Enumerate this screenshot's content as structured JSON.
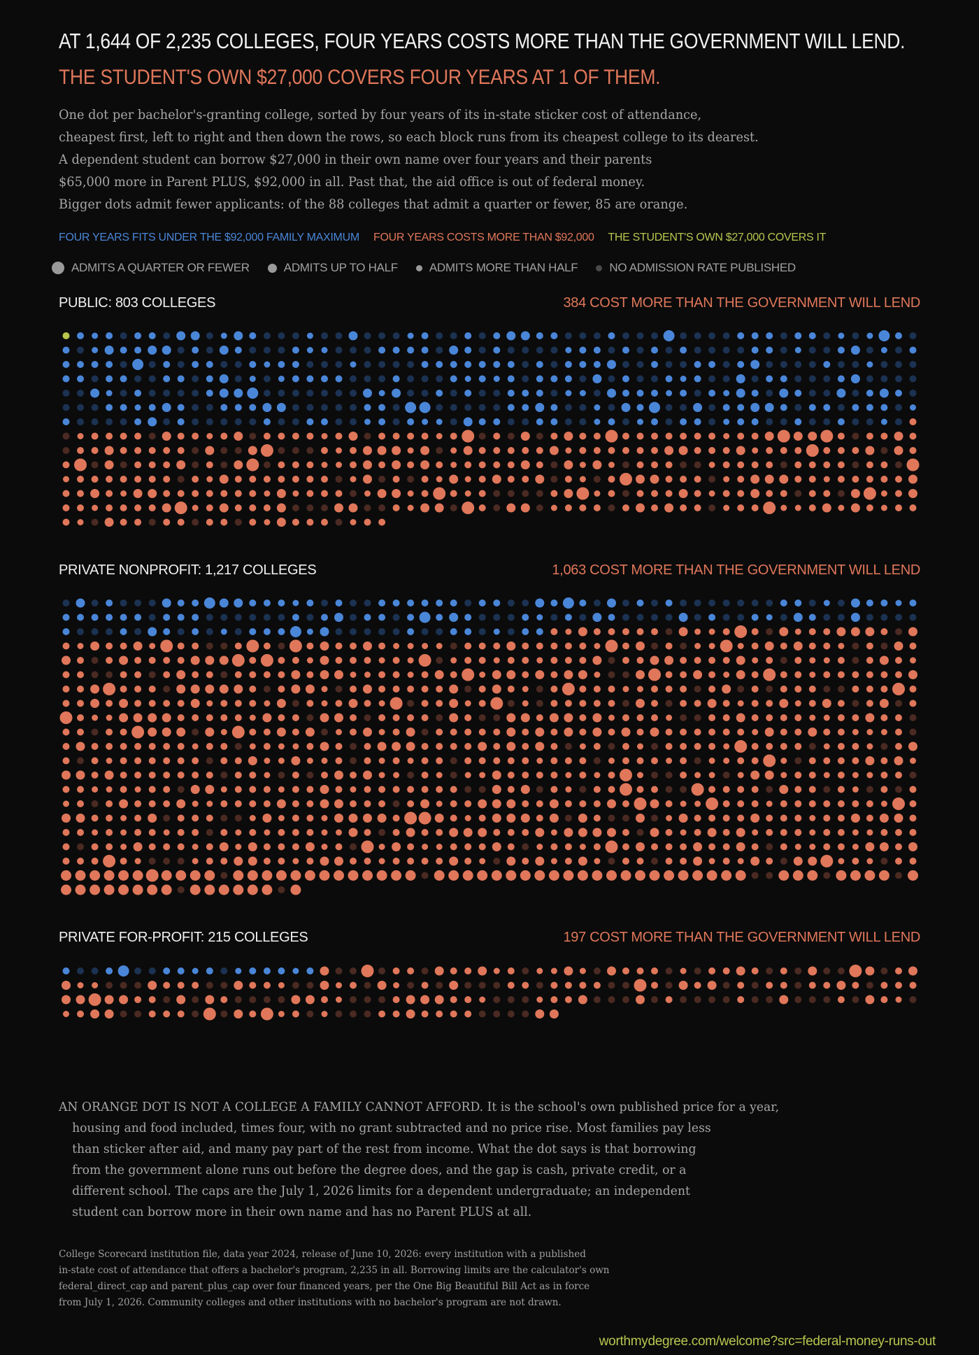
{
  "header": {
    "headline": "AT 1,644 OF 2,235 COLLEGES, FOUR YEARS COSTS MORE THAN THE GOVERNMENT WILL LEND.",
    "subhead": "THE STUDENT'S OWN $27,000 COVERS FOUR YEARS AT 1 OF THEM.",
    "intro": [
      "One dot per bachelor's-granting college, sorted by four years of its in-state sticker cost of attendance,",
      "cheapest first, left to right and then down the rows, so each block runs from its cheapest college to its dearest.",
      "A dependent student can borrow $27,000 in their own name over four years and their parents",
      "$65,000 more in Parent PLUS, $92,000 in all. Past that, the aid office is out of federal money.",
      "Bigger dots admit fewer applicants: of the 88 colleges that admit a quarter or fewer, 85 are orange."
    ]
  },
  "legend": {
    "colors": [
      {
        "label": "FOUR YEARS FITS UNDER THE $92,000 FAMILY MAXIMUM",
        "color": "#4a86d8"
      },
      {
        "label": "FOUR YEARS COSTS MORE THAN $92,000",
        "color": "#e0775a"
      },
      {
        "label": "THE STUDENT'S OWN $27,000 COVERS IT",
        "color": "#b9c64e"
      }
    ],
    "sizes": [
      {
        "label": "ADMITS A QUARTER OR FEWER"
      },
      {
        "label": "ADMITS UP TO HALF"
      },
      {
        "label": "ADMITS MORE THAN HALF"
      },
      {
        "label": "NO ADMISSION RATE PUBLISHED"
      }
    ]
  },
  "colors": {
    "background": "#0b0b0b",
    "fits": "#4a86d8",
    "fits_dim": "#1c3252",
    "over": "#e0775a",
    "over_dim": "#4a2a22",
    "covers": "#b9c64e"
  },
  "chart_data": {
    "type": "dot-grid",
    "sort": "four-year in-state sticker cost of attendance, ascending",
    "columns": 60,
    "family_max": 92000,
    "student_own": 27000,
    "admit_rate_quarter_or_fewer_total": 88,
    "admit_rate_quarter_or_fewer_orange": 85,
    "sections": [
      {
        "title": "PUBLIC: 803 COLLEGES",
        "count_label": "384 COST MORE THAN THE GOVERNMENT WILL LEND",
        "total": 803,
        "over": 384,
        "covers": 1
      },
      {
        "title": "PRIVATE NONPROFIT: 1,217 COLLEGES",
        "count_label": "1,063 COST MORE THAN THE GOVERNMENT WILL LEND",
        "total": 1217,
        "over": 1063,
        "covers": 0
      },
      {
        "title": "PRIVATE FOR-PROFIT: 215 COLLEGES",
        "count_label": "197 COST MORE THAN THE GOVERNMENT WILL LEND",
        "total": 215,
        "over": 197,
        "covers": 0
      }
    ]
  },
  "note": {
    "lead": "AN ORANGE DOT IS NOT A COLLEGE A FAMILY CANNOT AFFORD.",
    "first_rest": " It is the school's own published price for a year,",
    "lines": [
      "housing and food included, times four, with no grant subtracted and no price rise. Most families pay less",
      "than sticker after aid, and many pay part of the rest from income. What the dot says is that borrowing",
      "from the government alone runs out before the degree does, and the gap is cash, private credit, or a",
      "different school. The caps are the July 1, 2026 limits for a dependent undergraduate; an independent",
      "student can borrow more in their own name and has no Parent PLUS at all."
    ]
  },
  "source": [
    "College Scorecard institution file, data year 2024, release of June 10, 2026: every institution with a published",
    "in-state cost of attendance that offers a bachelor's program, 2,235 in all. Borrowing limits are the calculator's own",
    "federal_direct_cap and parent_plus_cap over four financed years, per the One Big Beautiful Bill Act as in force",
    "from July 1, 2026. Community colleges and other institutions with no bachelor's program are not drawn."
  ],
  "footer": {
    "url": "worthmydegree.com/welcome?src=federal-money-runs-out"
  }
}
